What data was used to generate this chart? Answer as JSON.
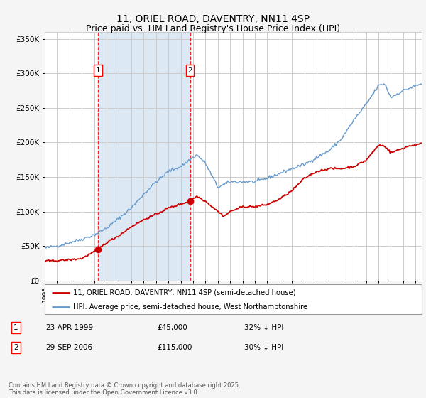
{
  "title": "11, ORIEL ROAD, DAVENTRY, NN11 4SP",
  "subtitle": "Price paid vs. HM Land Registry's House Price Index (HPI)",
  "legend_line1": "11, ORIEL ROAD, DAVENTRY, NN11 4SP (semi-detached house)",
  "legend_line2": "HPI: Average price, semi-detached house, West Northamptonshire",
  "footer": "Contains HM Land Registry data © Crown copyright and database right 2025.\nThis data is licensed under the Open Government Licence v3.0.",
  "xmin": 1995.0,
  "xmax": 2025.5,
  "ymin": 0,
  "ymax": 360000,
  "yticks": [
    0,
    50000,
    100000,
    150000,
    200000,
    250000,
    300000,
    350000
  ],
  "ytick_labels": [
    "£0",
    "£50K",
    "£100K",
    "£150K",
    "£200K",
    "£250K",
    "£300K",
    "£350K"
  ],
  "xticks": [
    1995,
    1996,
    1997,
    1998,
    1999,
    2000,
    2001,
    2002,
    2003,
    2004,
    2005,
    2006,
    2007,
    2008,
    2009,
    2010,
    2011,
    2012,
    2013,
    2014,
    2015,
    2016,
    2017,
    2018,
    2019,
    2020,
    2021,
    2022,
    2023,
    2024,
    2025
  ],
  "sale1_x": 1999.31,
  "sale1_y": 45000,
  "sale1_label": "1",
  "sale1_date": "23-APR-1999",
  "sale1_price": "£45,000",
  "sale1_hpi": "32% ↓ HPI",
  "sale2_x": 2006.75,
  "sale2_y": 115000,
  "sale2_label": "2",
  "sale2_date": "29-SEP-2006",
  "sale2_price": "£115,000",
  "sale2_hpi": "30% ↓ HPI",
  "shade_x1": 1999.31,
  "shade_x2": 2006.75,
  "shade_color": "#dce9f5",
  "red_color": "#cc0000",
  "blue_color": "#6699cc",
  "grid_color": "#cccccc",
  "bg_color": "#f5f5f5",
  "plot_bg": "#ffffff",
  "title_fontsize": 10,
  "subtitle_fontsize": 9,
  "marker_size": 7
}
